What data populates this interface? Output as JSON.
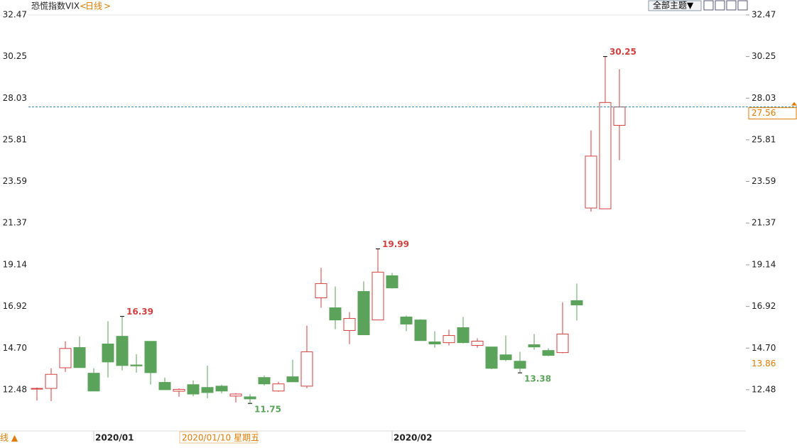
{
  "header": {
    "title": "恐慌指数VIX",
    "period": "日线",
    "prev": "<",
    "next": ">",
    "theme_button": "全部主题▼",
    "bottom_tab": "线 ▲"
  },
  "chart_data": {
    "type": "candlestick",
    "categories": [
      null,
      null,
      null,
      null,
      "2020/01",
      null,
      null,
      null,
      null,
      null,
      null,
      null,
      null,
      null,
      null,
      null,
      null,
      null,
      null,
      null,
      null,
      null,
      null,
      null,
      null,
      "2020/02",
      null,
      null,
      null,
      null,
      null,
      null,
      null,
      null,
      null,
      null,
      null,
      null,
      null,
      null,
      null,
      null
    ],
    "open": [
      12.55,
      12.55,
      13.65,
      14.73,
      13.36,
      14.92,
      15.33,
      13.8,
      15.06,
      12.87,
      12.4,
      12.75,
      12.6,
      12.67,
      12.14,
      12.1,
      13.13,
      12.41,
      13.17,
      12.67,
      17.38,
      16.85,
      15.64,
      17.72,
      16.2,
      18.56,
      16.36,
      16.2,
      15.03,
      14.99,
      15.79,
      14.84,
      14.76,
      14.34,
      14.0,
      14.88,
      14.57,
      14.46,
      17.23,
      22.17,
      22.13,
      26.58
    ],
    "high": [
      12.6,
      13.62,
      15.06,
      15.33,
      13.62,
      16.13,
      16.39,
      14.38,
      15.06,
      13.13,
      12.55,
      12.97,
      13.77,
      12.75,
      12.3,
      12.25,
      13.24,
      12.9,
      14.08,
      15.9,
      18.98,
      17.99,
      16.62,
      18.26,
      19.99,
      18.71,
      16.44,
      16.24,
      15.6,
      15.68,
      16.36,
      15.22,
      14.76,
      15.37,
      14.5,
      15.45,
      14.69,
      17.15,
      18.14,
      26.31,
      30.25,
      29.58
    ],
    "low": [
      11.9,
      11.87,
      13.43,
      13.66,
      12.41,
      13.13,
      13.51,
      13.39,
      12.75,
      12.48,
      12.1,
      12.14,
      12.02,
      12.29,
      11.8,
      11.75,
      12.71,
      12.37,
      12.9,
      12.56,
      16.85,
      15.71,
      14.91,
      15.41,
      16.2,
      17.87,
      15.6,
      15.1,
      14.72,
      14.84,
      14.95,
      14.72,
      13.58,
      14.0,
      13.38,
      14.61,
      14.27,
      14.42,
      16.17,
      21.98,
      22.13,
      24.72
    ],
    "close": [
      12.55,
      13.3,
      14.68,
      13.66,
      12.41,
      13.96,
      13.77,
      13.75,
      13.39,
      12.48,
      12.5,
      12.25,
      12.33,
      12.41,
      12.25,
      11.99,
      12.79,
      12.79,
      12.9,
      14.5,
      18.14,
      16.2,
      16.28,
      15.41,
      18.75,
      17.91,
      15.98,
      15.1,
      14.92,
      15.37,
      14.99,
      15.07,
      13.62,
      14.08,
      13.62,
      14.76,
      14.31,
      15.45,
      17.0,
      24.94,
      27.8,
      27.56
    ],
    "up_color": "#d23f3f",
    "down_color": "#5ba35b",
    "ylim": [
      10.28,
      32.47
    ],
    "yticks": [
      12.48,
      {
        "value": 14.7,
        "label": "14.70"
      },
      16.92,
      19.14,
      21.37,
      23.59,
      25.81,
      28.03,
      30.25,
      32.47
    ],
    "annotations": [
      {
        "index": 6,
        "field": "high",
        "value": 16.39
      },
      {
        "index": 24,
        "field": "high",
        "value": 19.99
      },
      {
        "index": 40,
        "field": "high",
        "value": 30.25
      },
      {
        "index": 15,
        "field": "low",
        "value": 11.75
      },
      {
        "index": 34,
        "field": "low",
        "value": 13.38
      }
    ],
    "last_price": 27.56,
    "crosshair_price": 13.86,
    "crosshair_date": "2020/01/10 星期五"
  }
}
